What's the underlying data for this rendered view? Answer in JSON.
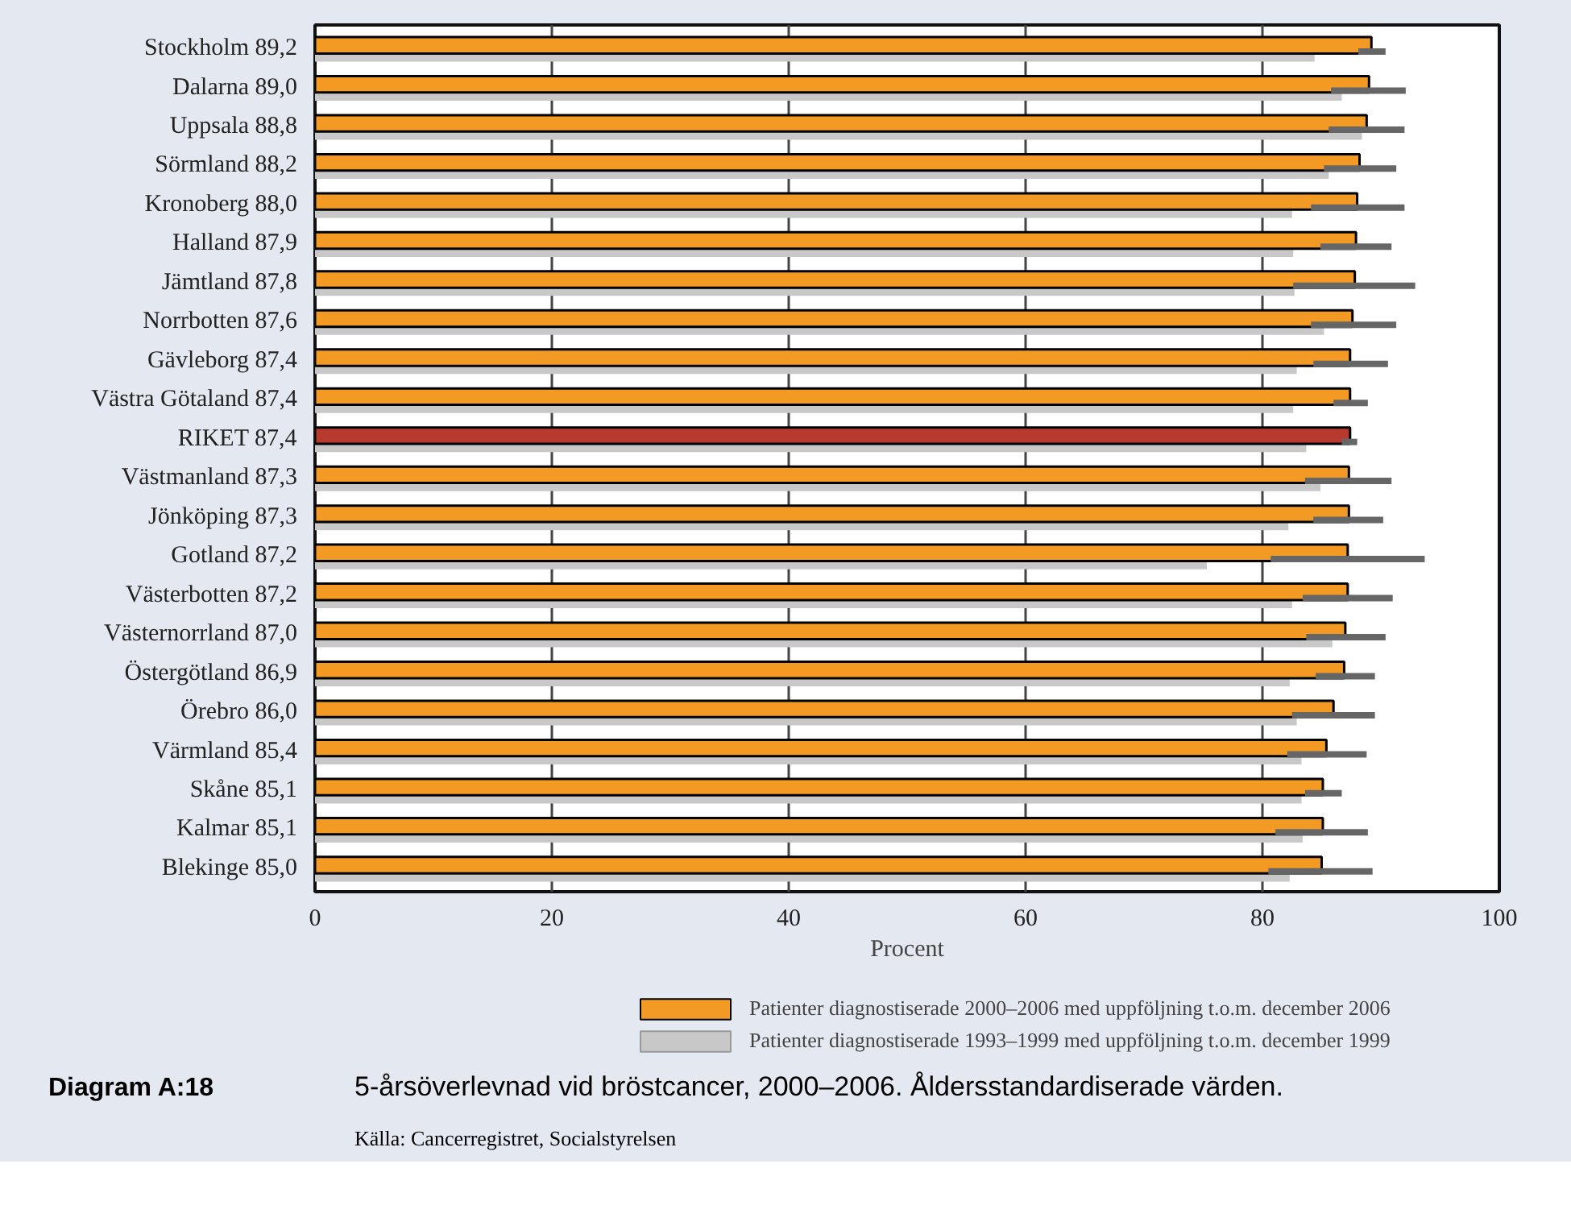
{
  "chart_data": {
    "type": "bar",
    "orientation": "horizontal",
    "title": "5-årsöverlevnad vid bröstcancer, 2000–2006. Åldersstandardiserade värden.",
    "annotations": [
      "Diagram A:18",
      "Källa: Cancerregistret, Socialstyrelsen"
    ],
    "xlabel": "Procent",
    "categories": [
      "Stockholm",
      "Dalarna",
      "Uppsala",
      "Sörmland",
      "Kronoberg",
      "Halland",
      "Jämtland",
      "Norrbotten",
      "Gävleborg",
      "Västra Götaland",
      "RIKET",
      "Västmanland",
      "Jönköping",
      "Gotland",
      "Västerbotten",
      "Västernorrland",
      "Östergötland",
      "Örebro",
      "Värmland",
      "Skåne",
      "Kalmar",
      "Blekinge"
    ],
    "series": [
      {
        "name": "Patienter diagnostiserade 2000–2006 med uppföljning t.o.m. december 2006",
        "color": "#f39a25",
        "colors": [
          "#f39a25",
          "#f39a25",
          "#f39a25",
          "#f39a25",
          "#f39a25",
          "#f39a25",
          "#f39a25",
          "#f39a25",
          "#f39a25",
          "#f39a25",
          "#b83a2e",
          "#f39a25",
          "#f39a25",
          "#f39a25",
          "#f39a25",
          "#f39a25",
          "#f39a25",
          "#f39a25",
          "#f39a25",
          "#f39a25",
          "#f39a25",
          "#f39a25"
        ],
        "values": [
          89.2,
          89.0,
          88.8,
          88.2,
          88.0,
          87.9,
          87.8,
          87.6,
          87.4,
          87.4,
          87.4,
          87.3,
          87.3,
          87.2,
          87.2,
          87.0,
          86.9,
          86.0,
          85.4,
          85.1,
          85.1,
          85.0
        ],
        "value_labels": [
          "89,2",
          "89,0",
          "88,8",
          "88,2",
          "88,0",
          "87,9",
          "87,8",
          "87,6",
          "87,4",
          "87,4",
          "87,4",
          "87,3",
          "87,3",
          "87,2",
          "87,2",
          "87,0",
          "86,9",
          "86,0",
          "85,4",
          "85,1",
          "85,1",
          "85,0"
        ],
        "errors": [
          [
            88.1,
            90.4
          ],
          [
            85.8,
            92.1
          ],
          [
            85.6,
            92.0
          ],
          [
            85.2,
            91.3
          ],
          [
            84.1,
            92.0
          ],
          [
            84.9,
            90.9
          ],
          [
            82.6,
            92.9
          ],
          [
            84.1,
            91.3
          ],
          [
            84.3,
            90.6
          ],
          [
            86.0,
            88.9
          ],
          [
            86.7,
            88.0
          ],
          [
            83.6,
            90.9
          ],
          [
            84.3,
            90.2
          ],
          [
            80.7,
            93.7
          ],
          [
            83.4,
            91.0
          ],
          [
            83.7,
            90.4
          ],
          [
            84.5,
            89.5
          ],
          [
            82.5,
            89.5
          ],
          [
            82.1,
            88.8
          ],
          [
            83.6,
            86.7
          ],
          [
            81.1,
            88.9
          ],
          [
            80.5,
            89.3
          ]
        ]
      },
      {
        "name": "Patienter diagnostiserade 1993–1999 med uppföljning t.o.m. december 1999",
        "color": "#c8c8c8",
        "values": [
          84.4,
          86.7,
          88.4,
          85.6,
          82.5,
          82.6,
          82.7,
          85.2,
          82.9,
          82.6,
          83.7,
          84.9,
          82.2,
          75.3,
          82.5,
          85.9,
          82.3,
          82.9,
          83.3,
          83.3,
          83.4,
          82.3
        ]
      }
    ],
    "xlim": [
      0,
      100
    ],
    "xticks": [
      0,
      20,
      40,
      60,
      80,
      100
    ],
    "grid": "x",
    "legend": "bottom"
  }
}
